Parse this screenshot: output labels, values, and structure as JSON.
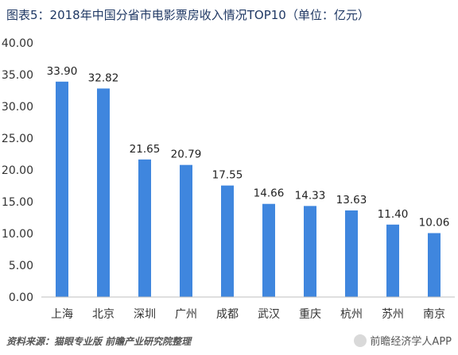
{
  "title": "图表5：2018年中国分省市电影票房收入情况TOP10（单位：亿元）",
  "footer": {
    "source": "资料来源：猫眼专业版 前瞻产业研究院整理",
    "app": "前瞻经济学人APP"
  },
  "colors": {
    "bar": "#3f86de",
    "axis": "#bfbfbf",
    "title": "#1f3864"
  },
  "chart_data": {
    "type": "bar",
    "title": "图表5：2018年中国分省市电影票房收入情况TOP10（单位：亿元）",
    "xlabel": "",
    "ylabel": "",
    "categories": [
      "上海",
      "北京",
      "深圳",
      "广州",
      "成都",
      "武汉",
      "重庆",
      "杭州",
      "苏州",
      "南京"
    ],
    "values": [
      33.9,
      32.82,
      21.65,
      20.79,
      17.55,
      14.66,
      14.33,
      13.63,
      11.4,
      10.06
    ],
    "value_labels": [
      "33.90",
      "32.82",
      "21.65",
      "20.79",
      "17.55",
      "14.66",
      "14.33",
      "13.63",
      "11.40",
      "10.06"
    ],
    "ylim": [
      0,
      40
    ],
    "yticks": [
      0,
      5,
      10,
      15,
      20,
      25,
      30,
      35,
      40
    ],
    "ytick_labels": [
      "0.00",
      "5.00",
      "10.00",
      "15.00",
      "20.00",
      "25.00",
      "30.00",
      "35.00",
      "40.00"
    ],
    "grid": false,
    "legend": "none"
  }
}
